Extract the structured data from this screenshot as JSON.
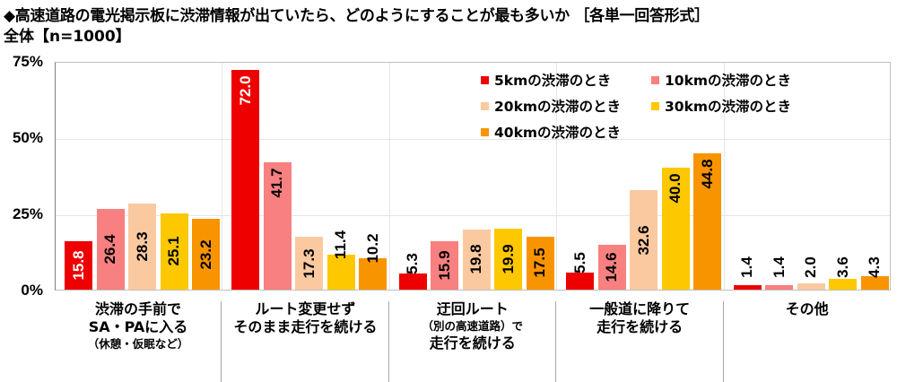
{
  "header": {
    "title": "◆高速道路の電光掲示板に渋滞情報が出ていたら、どのようにすることが最も多いか ［各単一回答形式］",
    "subtitle": "全体【n=1000】"
  },
  "colors": {
    "5km": "#ee0000",
    "10km": "#f88080",
    "20km": "#fbc9a0",
    "30km": "#fdc800",
    "40km": "#f89400"
  },
  "legend": {
    "items": [
      {
        "label": "5kmの渋滞のとき",
        "color": "#ee0000"
      },
      {
        "label": "10kmの渋滞のとき",
        "color": "#f88080"
      },
      {
        "label": "20kmの渋滞のとき",
        "color": "#fbc9a0"
      },
      {
        "label": "30kmの渋滞のとき",
        "color": "#fdc800"
      },
      {
        "label": "40kmの渋滞のとき",
        "color": "#f89400"
      }
    ]
  },
  "axis": {
    "yticks": [
      "75%",
      "50%",
      "25%",
      "0%"
    ]
  },
  "categories": [
    {
      "lines": [
        {
          "t": "渋滞の手前で",
          "s": false
        },
        {
          "t": "SA・PAに入る",
          "s": false
        },
        {
          "t": "（休憩・仮眠など）",
          "s": true
        }
      ]
    },
    {
      "lines": [
        {
          "t": "ルート変更せず",
          "s": false
        },
        {
          "t": "そのまま走行を続ける",
          "s": false
        }
      ]
    },
    {
      "lines": [
        {
          "t": "迂回ルート",
          "s": false
        },
        {
          "t": "（別の高速道路）で",
          "s": true
        },
        {
          "t": "走行を続ける",
          "s": false
        }
      ]
    },
    {
      "lines": [
        {
          "t": "一般道に降りて",
          "s": false
        },
        {
          "t": "走行を続ける",
          "s": false
        }
      ]
    },
    {
      "lines": [
        {
          "t": "その他",
          "s": false
        }
      ]
    }
  ],
  "chart_data": {
    "type": "bar",
    "title": "◆高速道路の電光掲示板に渋滞情報が出ていたら、どのようにすることが最も多いか ［各単一回答形式］",
    "subtitle": "全体【n=1000】",
    "categories": [
      "渋滞の手前でSA・PAに入る（休憩・仮眠など）",
      "ルート変更せずそのまま走行を続ける",
      "迂回ルート（別の高速道路）で走行を続ける",
      "一般道に降りて走行を続ける",
      "その他"
    ],
    "series": [
      {
        "name": "5kmの渋滞のとき",
        "color": "#ee0000",
        "values": [
          15.8,
          72.0,
          5.3,
          5.5,
          1.4
        ]
      },
      {
        "name": "10kmの渋滞のとき",
        "color": "#f88080",
        "values": [
          26.4,
          41.7,
          15.9,
          14.6,
          1.4
        ]
      },
      {
        "name": "20kmの渋滞のとき",
        "color": "#fbc9a0",
        "values": [
          28.3,
          17.3,
          19.8,
          32.6,
          2.0
        ]
      },
      {
        "name": "30kmの渋滞のとき",
        "color": "#fdc800",
        "values": [
          25.1,
          11.4,
          19.9,
          40.0,
          3.6
        ]
      },
      {
        "name": "40kmの渋滞のとき",
        "color": "#f89400",
        "values": [
          23.2,
          10.2,
          17.5,
          44.8,
          4.3
        ]
      }
    ],
    "xlabel": "",
    "ylabel": "",
    "ylim": [
      0,
      75
    ],
    "yticks": [
      0,
      25,
      50,
      75
    ],
    "ytick_format": "%",
    "grid": true,
    "legend_position": "upper right inside",
    "data_labels": "rotated 90°, one decimal"
  }
}
